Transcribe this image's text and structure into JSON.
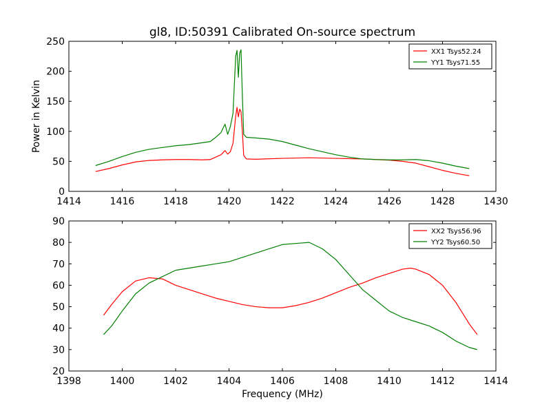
{
  "chart_data": [
    {
      "type": "line",
      "title": "gl8, ID:50391 Calibrated On-source spectrum",
      "ylabel": "Power in Kelvin",
      "xlabel": "",
      "xlim": [
        1414,
        1430
      ],
      "ylim": [
        0,
        250
      ],
      "xticks": [
        1414,
        1416,
        1418,
        1420,
        1422,
        1424,
        1426,
        1428,
        1430
      ],
      "yticks": [
        0,
        50,
        100,
        150,
        200,
        250
      ],
      "legend_position": "top-right",
      "grid": false,
      "series": [
        {
          "name": "XX1 Tsys52.24",
          "color": "#ff0000",
          "points": [
            [
              1415.0,
              33
            ],
            [
              1415.5,
              38
            ],
            [
              1416.0,
              44
            ],
            [
              1416.5,
              49
            ],
            [
              1417.0,
              51.5
            ],
            [
              1417.5,
              52.5
            ],
            [
              1418.0,
              53
            ],
            [
              1418.5,
              53
            ],
            [
              1419.0,
              52.5
            ],
            [
              1419.3,
              53
            ],
            [
              1419.5,
              57
            ],
            [
              1419.7,
              61
            ],
            [
              1419.85,
              68
            ],
            [
              1419.95,
              62
            ],
            [
              1420.05,
              66
            ],
            [
              1420.15,
              80
            ],
            [
              1420.25,
              125
            ],
            [
              1420.3,
              140
            ],
            [
              1420.35,
              124
            ],
            [
              1420.4,
              137
            ],
            [
              1420.45,
              133
            ],
            [
              1420.5,
              100
            ],
            [
              1420.55,
              60
            ],
            [
              1420.65,
              54
            ],
            [
              1421.0,
              53.5
            ],
            [
              1422.0,
              55
            ],
            [
              1423.0,
              56
            ],
            [
              1424.0,
              55
            ],
            [
              1425.0,
              54
            ],
            [
              1426.0,
              52
            ],
            [
              1426.5,
              50
            ],
            [
              1427.0,
              47
            ],
            [
              1427.5,
              41
            ],
            [
              1428.0,
              35
            ],
            [
              1428.5,
              30
            ],
            [
              1429.0,
              26
            ]
          ]
        },
        {
          "name": "YY1 Tsys71.55",
          "color": "#008000",
          "points": [
            [
              1415.0,
              43
            ],
            [
              1415.5,
              50
            ],
            [
              1416.0,
              58
            ],
            [
              1416.5,
              65
            ],
            [
              1417.0,
              70
            ],
            [
              1417.5,
              73
            ],
            [
              1418.0,
              76
            ],
            [
              1418.5,
              78
            ],
            [
              1419.0,
              81
            ],
            [
              1419.3,
              83
            ],
            [
              1419.5,
              90
            ],
            [
              1419.7,
              98
            ],
            [
              1419.85,
              112
            ],
            [
              1419.95,
              95
            ],
            [
              1420.05,
              108
            ],
            [
              1420.15,
              130
            ],
            [
              1420.25,
              225
            ],
            [
              1420.3,
              235
            ],
            [
              1420.35,
              190
            ],
            [
              1420.4,
              230
            ],
            [
              1420.45,
              236
            ],
            [
              1420.5,
              160
            ],
            [
              1420.55,
              95
            ],
            [
              1420.65,
              90
            ],
            [
              1421.0,
              89
            ],
            [
              1421.5,
              87
            ],
            [
              1422.0,
              83
            ],
            [
              1422.5,
              77
            ],
            [
              1423.0,
              71
            ],
            [
              1423.5,
              66
            ],
            [
              1424.0,
              61
            ],
            [
              1424.5,
              57
            ],
            [
              1425.0,
              54
            ],
            [
              1425.5,
              53
            ],
            [
              1426.0,
              52.5
            ],
            [
              1426.5,
              52.5
            ],
            [
              1427.0,
              53
            ],
            [
              1427.5,
              51
            ],
            [
              1428.0,
              47
            ],
            [
              1428.5,
              42
            ],
            [
              1429.0,
              38
            ]
          ]
        }
      ]
    },
    {
      "type": "line",
      "title": "",
      "xlabel": "Frequency (MHz)",
      "ylabel": "",
      "xlim": [
        1398,
        1414
      ],
      "ylim": [
        20,
        90
      ],
      "xticks": [
        1398,
        1400,
        1402,
        1404,
        1406,
        1408,
        1410,
        1412,
        1414
      ],
      "yticks": [
        20,
        30,
        40,
        50,
        60,
        70,
        80,
        90
      ],
      "legend_position": "top-right",
      "grid": false,
      "series": [
        {
          "name": "XX2 Tsys56.96",
          "color": "#ff0000",
          "points": [
            [
              1399.3,
              46
            ],
            [
              1399.6,
              51
            ],
            [
              1400.0,
              57
            ],
            [
              1400.5,
              62
            ],
            [
              1401.0,
              63.5
            ],
            [
              1401.5,
              63
            ],
            [
              1402.0,
              60
            ],
            [
              1402.5,
              58
            ],
            [
              1403.0,
              56
            ],
            [
              1403.5,
              54
            ],
            [
              1404.0,
              52.5
            ],
            [
              1404.5,
              51
            ],
            [
              1405.0,
              50
            ],
            [
              1405.5,
              49.5
            ],
            [
              1406.0,
              49.5
            ],
            [
              1406.5,
              50.5
            ],
            [
              1407.0,
              52
            ],
            [
              1407.5,
              54
            ],
            [
              1408.0,
              56.5
            ],
            [
              1408.5,
              59
            ],
            [
              1409.0,
              61
            ],
            [
              1409.5,
              63.5
            ],
            [
              1410.0,
              65.5
            ],
            [
              1410.5,
              67.5
            ],
            [
              1410.8,
              68
            ],
            [
              1411.0,
              67.5
            ],
            [
              1411.5,
              65
            ],
            [
              1412.0,
              60
            ],
            [
              1412.5,
              52
            ],
            [
              1413.0,
              42
            ],
            [
              1413.3,
              37
            ]
          ]
        },
        {
          "name": "YY2 Tsys60.50",
          "color": "#008000",
          "points": [
            [
              1399.3,
              37
            ],
            [
              1399.6,
              41
            ],
            [
              1400.0,
              48
            ],
            [
              1400.5,
              56
            ],
            [
              1401.0,
              61
            ],
            [
              1401.5,
              64
            ],
            [
              1402.0,
              67
            ],
            [
              1402.5,
              68
            ],
            [
              1403.0,
              69
            ],
            [
              1403.5,
              70
            ],
            [
              1404.0,
              71
            ],
            [
              1404.5,
              73
            ],
            [
              1405.0,
              75
            ],
            [
              1405.5,
              77
            ],
            [
              1406.0,
              79
            ],
            [
              1406.5,
              79.5
            ],
            [
              1407.0,
              80
            ],
            [
              1407.5,
              77
            ],
            [
              1408.0,
              72
            ],
            [
              1408.5,
              65
            ],
            [
              1409.0,
              58
            ],
            [
              1409.5,
              53
            ],
            [
              1410.0,
              48
            ],
            [
              1410.5,
              45
            ],
            [
              1411.0,
              43
            ],
            [
              1411.5,
              41
            ],
            [
              1412.0,
              38
            ],
            [
              1412.5,
              34
            ],
            [
              1413.0,
              31
            ],
            [
              1413.3,
              30
            ]
          ]
        }
      ]
    }
  ]
}
